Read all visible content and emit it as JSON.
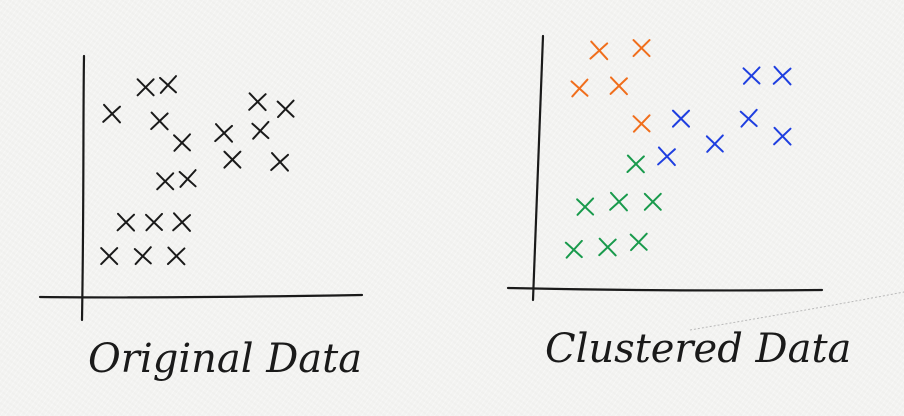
{
  "chart_data": [
    {
      "type": "scatter",
      "title": "Original Data",
      "xlim": [
        0,
        10
      ],
      "ylim": [
        0,
        10
      ],
      "grid": false,
      "marker": "x",
      "colors": {
        "default": "#1a1a1a"
      },
      "series": [
        {
          "color": "#1a1a1a",
          "points": [
            [
              1.0,
              7.6
            ],
            [
              2.2,
              8.7
            ],
            [
              3.0,
              8.8
            ],
            [
              2.7,
              7.3
            ],
            [
              3.5,
              6.4
            ],
            [
              5.0,
              6.8
            ],
            [
              5.3,
              5.7
            ],
            [
              6.3,
              6.9
            ],
            [
              6.2,
              8.1
            ],
            [
              7.2,
              7.8
            ],
            [
              7.0,
              5.6
            ],
            [
              2.9,
              4.8
            ],
            [
              3.7,
              4.9
            ],
            [
              1.5,
              3.1
            ],
            [
              2.5,
              3.1
            ],
            [
              3.5,
              3.1
            ],
            [
              0.9,
              1.7
            ],
            [
              2.1,
              1.7
            ],
            [
              3.3,
              1.7
            ]
          ]
        }
      ]
    },
    {
      "type": "scatter",
      "title": "Clustered Data",
      "xlim": [
        0,
        10
      ],
      "ylim": [
        0,
        10
      ],
      "grid": false,
      "marker": "x",
      "colors": {
        "cluster_1": "#f06e1c",
        "cluster_2": "#1f3fe0",
        "cluster_3": "#199a4c"
      },
      "series": [
        {
          "color": "#f06e1c",
          "points": [
            [
              2.1,
              9.5
            ],
            [
              3.6,
              9.6
            ],
            [
              1.4,
              8.0
            ],
            [
              2.8,
              8.1
            ],
            [
              3.6,
              6.6
            ]
          ]
        },
        {
          "color": "#1f3fe0",
          "points": [
            [
              7.5,
              8.5
            ],
            [
              8.6,
              8.5
            ],
            [
              5.0,
              6.8
            ],
            [
              7.4,
              6.8
            ],
            [
              8.6,
              6.1
            ],
            [
              6.2,
              5.8
            ],
            [
              4.5,
              5.3
            ]
          ]
        },
        {
          "color": "#199a4c",
          "points": [
            [
              3.4,
              5.0
            ],
            [
              1.6,
              3.3
            ],
            [
              2.8,
              3.5
            ],
            [
              4.0,
              3.5
            ],
            [
              1.2,
              1.6
            ],
            [
              2.4,
              1.7
            ],
            [
              3.5,
              1.9
            ]
          ]
        }
      ]
    }
  ]
}
